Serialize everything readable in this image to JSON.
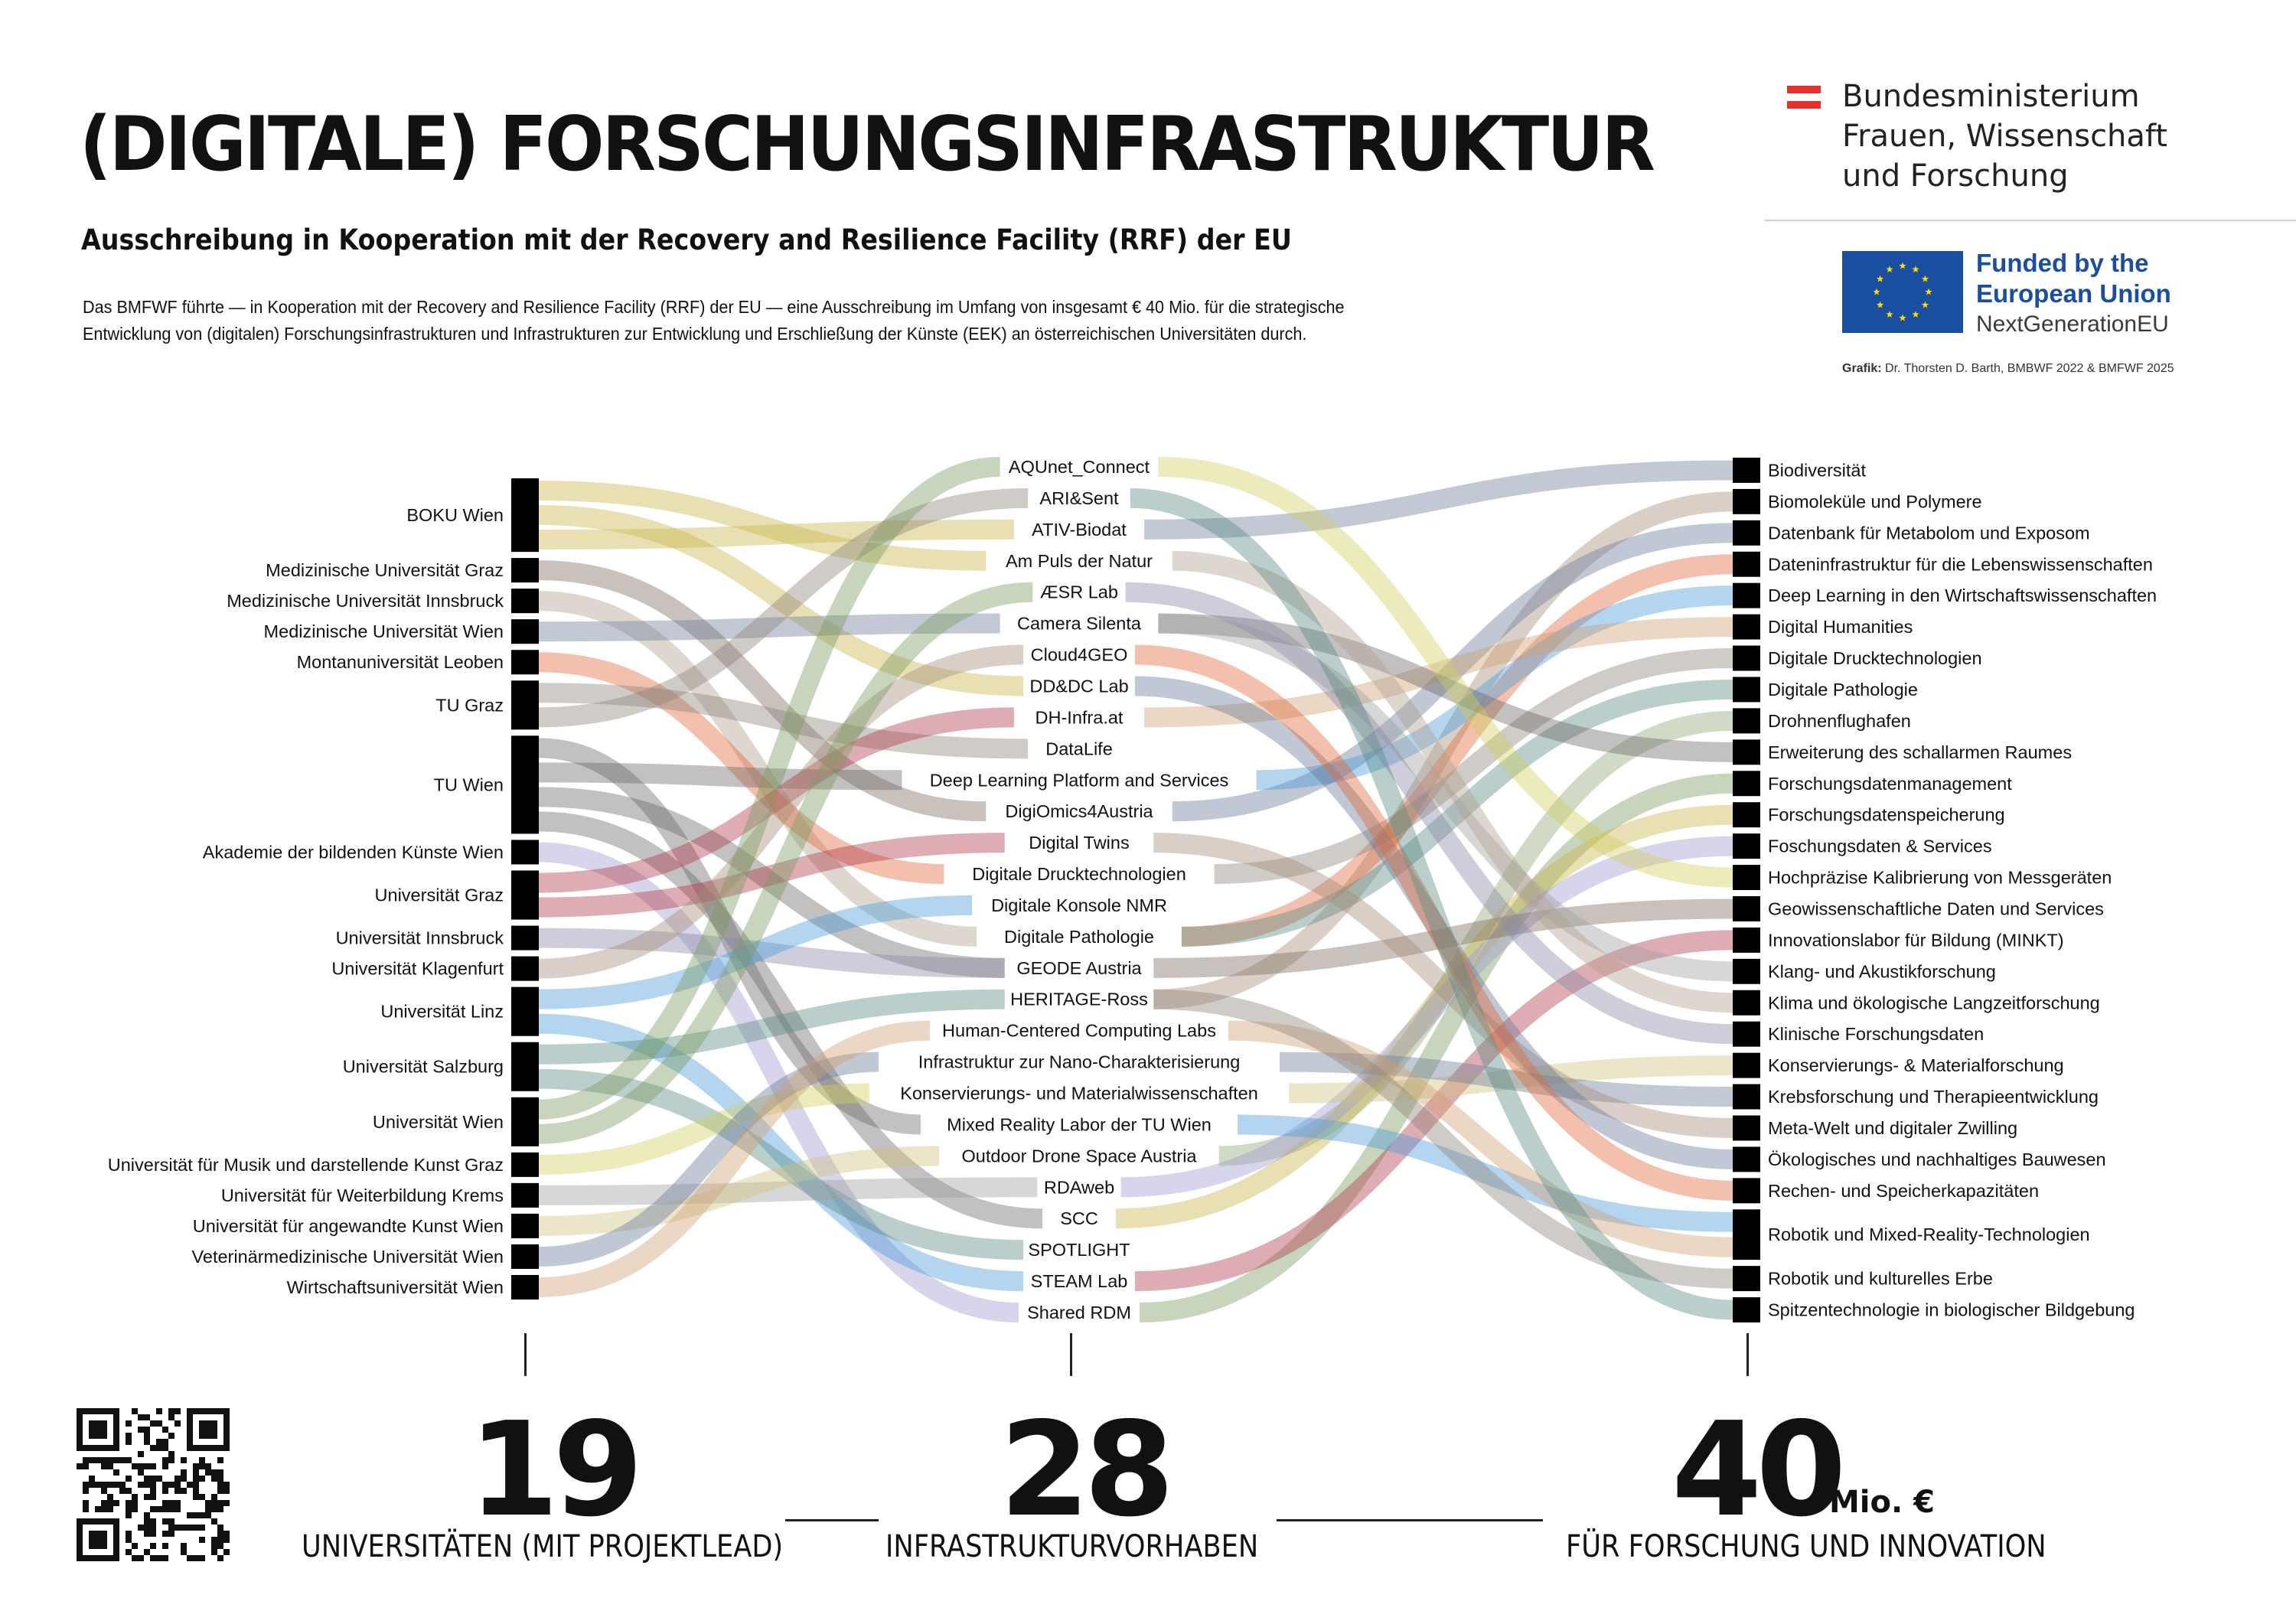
{
  "header": {
    "title": "(DIGITALE) FORSCHUNGSINFRASTRUKTUR",
    "subtitle": "Ausschreibung in Kooperation mit der Recovery and Resilience Facility (RRF) der EU",
    "intro_line1": "Das BMFWF führte — in Kooperation mit der Recovery and Resilience Facility (RRF) der EU — eine Ausschreibung im Umfang von insgesamt € 40 Mio. für die strategische",
    "intro_line2": "Entwicklung von (digitalen) Forschungsinfrastrukturen und Infrastrukturen zur Entwicklung und Erschließung der Künste (EEK) an österreichischen Universitäten durch."
  },
  "logos": {
    "ministry_line1": "Bundesministerium",
    "ministry_line2": "Frauen, Wissenschaft",
    "ministry_line3": "und Forschung",
    "eu_line1": "Funded by the",
    "eu_line2": "European Union",
    "eu_line3": "NextGenerationEU",
    "credit_label": "Grafik:",
    "credit_text": " Dr. Thorsten D. Barth, BMBWF 2022 & BMFWF 2025",
    "flag_red": "#e4312b",
    "eu_blue": "#1a4ea0",
    "eu_star": "#ffdd00"
  },
  "sankey": {
    "universities": [
      {
        "name": "BOKU Wien",
        "weight": 3
      },
      {
        "name": "Medizinische Universität Graz",
        "weight": 1
      },
      {
        "name": "Medizinische Universität Innsbruck",
        "weight": 1
      },
      {
        "name": "Medizinische Universität Wien",
        "weight": 1
      },
      {
        "name": "Montanuniversität Leoben",
        "weight": 1
      },
      {
        "name": "TU Graz",
        "weight": 2
      },
      {
        "name": "TU Wien",
        "weight": 4
      },
      {
        "name": "Akademie der bildenden Künste Wien",
        "weight": 1
      },
      {
        "name": "Universität Graz",
        "weight": 2
      },
      {
        "name": "Universität Innsbruck",
        "weight": 1
      },
      {
        "name": "Universität Klagenfurt",
        "weight": 1
      },
      {
        "name": "Universität Linz",
        "weight": 2
      },
      {
        "name": "Universität Salzburg",
        "weight": 2
      },
      {
        "name": "Universität Wien",
        "weight": 2
      },
      {
        "name": "Universität für Musik und darstellende Kunst Graz",
        "weight": 1
      },
      {
        "name": "Universität für Weiterbildung Krems",
        "weight": 1
      },
      {
        "name": "Universität für angewandte Kunst Wien",
        "weight": 1
      },
      {
        "name": "Veterinärmedizinische Universität Wien",
        "weight": 1
      },
      {
        "name": "Wirtschaftsuniversität Wien",
        "weight": 1
      }
    ],
    "projects": [
      "AQUnet_Connect",
      "ARI&Sent",
      "ATIV-Biodat",
      "Am Puls der Natur",
      "ÆSR Lab",
      "Camera Silenta",
      "Cloud4GEO",
      "DD&DC Lab",
      "DH-Infra.at",
      "DataLife",
      "Deep Learning Platform and Services",
      "DigiOmics4Austria",
      "Digital Twins",
      "Digitale Drucktechnologien",
      "Digitale Konsole NMR",
      "Digitale Pathologie",
      "GEODE Austria",
      "HERITAGE-Ross",
      "Human-Centered Computing Labs",
      "Infrastruktur zur Nano-Charakterisierung",
      "Konservierungs- und Materialwissenschaften",
      "Mixed Reality Labor der TU Wien",
      "Outdoor Drone Space Austria",
      "RDAweb",
      "SCC",
      "SPOTLIGHT",
      "STEAM Lab",
      "Shared RDM"
    ],
    "topics": [
      {
        "name": "Biodiversität",
        "weight": 1
      },
      {
        "name": "Biomoleküle und Polymere",
        "weight": 1
      },
      {
        "name": "Datenbank für Metabolom und Exposom",
        "weight": 1
      },
      {
        "name": "Dateninfrastruktur für die Lebenswissenschaften",
        "weight": 1
      },
      {
        "name": "Deep Learning in den Wirtschaftswissenschaften",
        "weight": 1
      },
      {
        "name": "Digital Humanities",
        "weight": 1
      },
      {
        "name": "Digitale Drucktechnologien",
        "weight": 1
      },
      {
        "name": "Digitale Pathologie",
        "weight": 1
      },
      {
        "name": "Drohnenflughafen",
        "weight": 1
      },
      {
        "name": "Erweiterung des schallarmen Raumes",
        "weight": 1
      },
      {
        "name": "Forschungsdatenmanagement",
        "weight": 1
      },
      {
        "name": "Forschungsdatenspeicherung",
        "weight": 1
      },
      {
        "name": "Foschungsdaten & Services",
        "weight": 1
      },
      {
        "name": "Hochpräzise Kalibrierung von Messgeräten",
        "weight": 1
      },
      {
        "name": "Geowissenschaftliche Daten und Services",
        "weight": 1
      },
      {
        "name": "Innovationslabor für Bildung (MINKT)",
        "weight": 1
      },
      {
        "name": "Klang- und Akustikforschung",
        "weight": 1
      },
      {
        "name": "Klima und ökologische Langzeitforschung",
        "weight": 1
      },
      {
        "name": "Klinische Forschungsdaten",
        "weight": 1
      },
      {
        "name": "Konservierungs- & Materialforschung",
        "weight": 1
      },
      {
        "name": "Krebsforschung und Therapieentwicklung",
        "weight": 1
      },
      {
        "name": "Meta-Welt und digitaler Zwilling",
        "weight": 1
      },
      {
        "name": "Ökologisches und nachhaltiges Bauwesen",
        "weight": 1
      },
      {
        "name": "Rechen- und Speicherkapazitäten",
        "weight": 1
      },
      {
        "name": "Robotik und Mixed-Reality-Technologien",
        "weight": 2
      },
      {
        "name": "Robotik und kulturelles Erbe",
        "weight": 1
      },
      {
        "name": "Spitzentechnologie in biologischer Bildgebung",
        "weight": 1
      }
    ],
    "flows_left": [
      [
        0,
        3
      ],
      [
        0,
        7
      ],
      [
        0,
        2
      ],
      [
        1,
        11
      ],
      [
        2,
        15
      ],
      [
        3,
        5
      ],
      [
        4,
        13
      ],
      [
        5,
        9
      ],
      [
        5,
        1
      ],
      [
        6,
        21
      ],
      [
        6,
        10
      ],
      [
        6,
        16
      ],
      [
        6,
        24
      ],
      [
        7,
        27
      ],
      [
        8,
        8
      ],
      [
        8,
        12
      ],
      [
        9,
        16
      ],
      [
        10,
        6
      ],
      [
        11,
        14
      ],
      [
        11,
        26
      ],
      [
        12,
        17
      ],
      [
        12,
        25
      ],
      [
        13,
        0
      ],
      [
        13,
        4
      ],
      [
        14,
        20
      ],
      [
        15,
        23
      ],
      [
        16,
        22
      ],
      [
        17,
        19
      ],
      [
        18,
        18
      ]
    ],
    "flows_right": [
      [
        2,
        0
      ],
      [
        17,
        1
      ],
      [
        11,
        2
      ],
      [
        15,
        3
      ],
      [
        10,
        4
      ],
      [
        8,
        5
      ],
      [
        13,
        6
      ],
      [
        15,
        7
      ],
      [
        22,
        8
      ],
      [
        5,
        9
      ],
      [
        27,
        10
      ],
      [
        24,
        11
      ],
      [
        23,
        12
      ],
      [
        0,
        13
      ],
      [
        16,
        14
      ],
      [
        26,
        15
      ],
      [
        5,
        16
      ],
      [
        3,
        17
      ],
      [
        4,
        18
      ],
      [
        20,
        19
      ],
      [
        19,
        20
      ],
      [
        12,
        21
      ],
      [
        7,
        22
      ],
      [
        6,
        23
      ],
      [
        21,
        24
      ],
      [
        18,
        24
      ],
      [
        17,
        25
      ],
      [
        1,
        26
      ]
    ],
    "flow_colors": [
      "#c8b44a",
      "#7e6e60",
      "#b0a090",
      "#6f7f99",
      "#e06a3a",
      "#8d8378",
      "#6e6a6a",
      "#9f9bcf",
      "#b03a4a",
      "#8a8aa8",
      "#a48c78",
      "#4a9ad8",
      "#5a8a82",
      "#7a9c60",
      "#cfcf60",
      "#a0a0a0",
      "#cfc080",
      "#6a7a9a",
      "#d0a070",
      "#8fa878"
    ]
  },
  "stats": {
    "universities_number": "19",
    "universities_label": "UNIVERSITÄTEN (MIT PROJEKTLEAD)",
    "projects_number": "28",
    "projects_label": "INFRASTRUKTURVORHABEN",
    "funding_number": "40",
    "funding_unit": "Mio. €",
    "funding_label": "FÜR FORSCHUNG UND INNOVATION"
  }
}
